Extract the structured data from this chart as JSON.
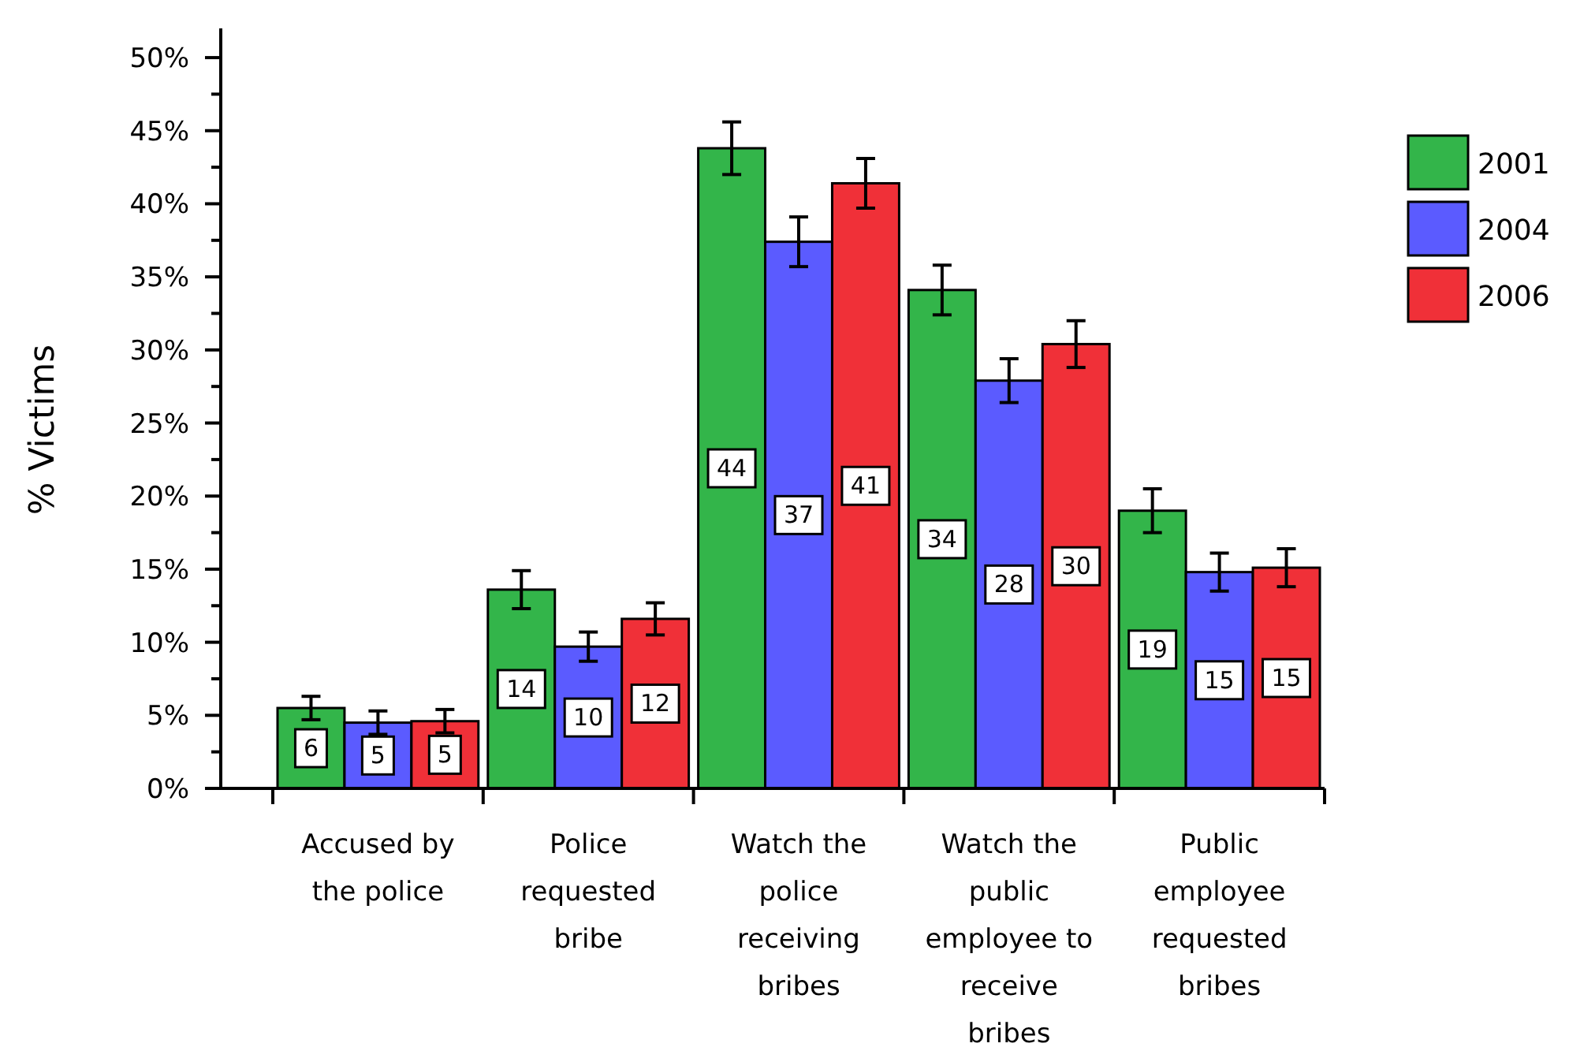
{
  "chart_data": {
    "type": "bar",
    "ylabel": "% Victims",
    "categories": [
      "Accused by the police",
      "Police requested bribe",
      "Watch the police receiving bribes",
      "Watch the public employee to receive bribes",
      "Public employee requested bribes"
    ],
    "series": [
      {
        "name": "2001",
        "color": "#33b54a",
        "values": [
          5.5,
          13.6,
          43.8,
          34.1,
          19.0
        ],
        "errors": [
          0.8,
          1.3,
          1.8,
          1.7,
          1.5
        ],
        "value_labels": [
          "6",
          "14",
          "44",
          "34",
          "19"
        ]
      },
      {
        "name": "2004",
        "color": "#5b5bff",
        "values": [
          4.5,
          9.7,
          37.4,
          27.9,
          14.8
        ],
        "errors": [
          0.8,
          1.0,
          1.7,
          1.5,
          1.3
        ],
        "value_labels": [
          "5",
          "10",
          "37",
          "28",
          "15"
        ]
      },
      {
        "name": "2006",
        "color": "#f03038",
        "values": [
          4.6,
          11.6,
          41.4,
          30.4,
          15.1
        ],
        "errors": [
          0.8,
          1.1,
          1.7,
          1.6,
          1.3
        ],
        "value_labels": [
          "5",
          "12",
          "41",
          "30",
          "15"
        ]
      }
    ],
    "ylim": [
      0,
      52
    ],
    "yticks": [
      {
        "value": 0,
        "label": "0%"
      },
      {
        "value": 2.5,
        "label": null
      },
      {
        "value": 5,
        "label": "5%"
      },
      {
        "value": 7.5,
        "label": null
      },
      {
        "value": 10,
        "label": "10%"
      },
      {
        "value": 12.5,
        "label": null
      },
      {
        "value": 15,
        "label": "15%"
      },
      {
        "value": 17.5,
        "label": null
      },
      {
        "value": 20,
        "label": "20%"
      },
      {
        "value": 22.5,
        "label": null
      },
      {
        "value": 25,
        "label": "25%"
      },
      {
        "value": 27.5,
        "label": null
      },
      {
        "value": 30,
        "label": "30%"
      },
      {
        "value": 32.5,
        "label": null
      },
      {
        "value": 35,
        "label": "35%"
      },
      {
        "value": 37.5,
        "label": null
      },
      {
        "value": 40,
        "label": "40%"
      },
      {
        "value": 42.5,
        "label": null
      },
      {
        "value": 45,
        "label": "45%"
      },
      {
        "value": 47.5,
        "label": null
      },
      {
        "value": 50,
        "label": "50%"
      }
    ],
    "grid": false,
    "legend": "right"
  }
}
